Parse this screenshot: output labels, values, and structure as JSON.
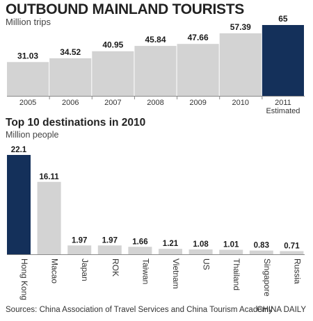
{
  "title": "OUTBOUND MAINLAND TOURISTS",
  "subtitle": "Million trips",
  "section2_title": "Top 10 destinations in 2010",
  "section2_subtitle": "Million people",
  "source": "Sources: China Association of Travel Services and China Tourism Academy",
  "credit": "CHINA DAILY",
  "colors": {
    "highlight": "#14305a",
    "bar": "#d3d3d3",
    "axis": "#888888"
  },
  "chart_data": [
    {
      "type": "bar",
      "title": "OUTBOUND MAINLAND TOURISTS",
      "ylabel": "Million trips",
      "categories": [
        "2005",
        "2006",
        "2007",
        "2008",
        "2009",
        "2010",
        "2011"
      ],
      "category_notes": [
        "",
        "",
        "",
        "",
        "",
        "",
        "Estimated"
      ],
      "values": [
        31.03,
        34.52,
        40.95,
        45.84,
        47.66,
        57.39,
        65
      ],
      "value_labels": [
        "31.03",
        "34.52",
        "40.95",
        "45.84",
        "47.66",
        "57.39",
        "65"
      ],
      "highlight_index": 6,
      "ylim": [
        0,
        65
      ],
      "grid": false,
      "legend": "none"
    },
    {
      "type": "bar",
      "title": "Top 10 destinations in 2010",
      "ylabel": "Million people",
      "categories": [
        "Hong Kong",
        "Macao",
        "Japan",
        "ROK",
        "Taiwan",
        "Vietnam",
        "US",
        "Thailand",
        "Singapore",
        "Russia"
      ],
      "values": [
        22.1,
        16.11,
        1.97,
        1.97,
        1.66,
        1.21,
        1.08,
        1.01,
        0.83,
        0.71
      ],
      "value_labels": [
        "22.1",
        "16.11",
        "1.97",
        "1.97",
        "1.66",
        "1.21",
        "1.08",
        "1.01",
        "0.83",
        "0.71"
      ],
      "highlight_index": 0,
      "ylim": [
        0,
        22.1
      ],
      "grid": false,
      "legend": "none"
    }
  ]
}
